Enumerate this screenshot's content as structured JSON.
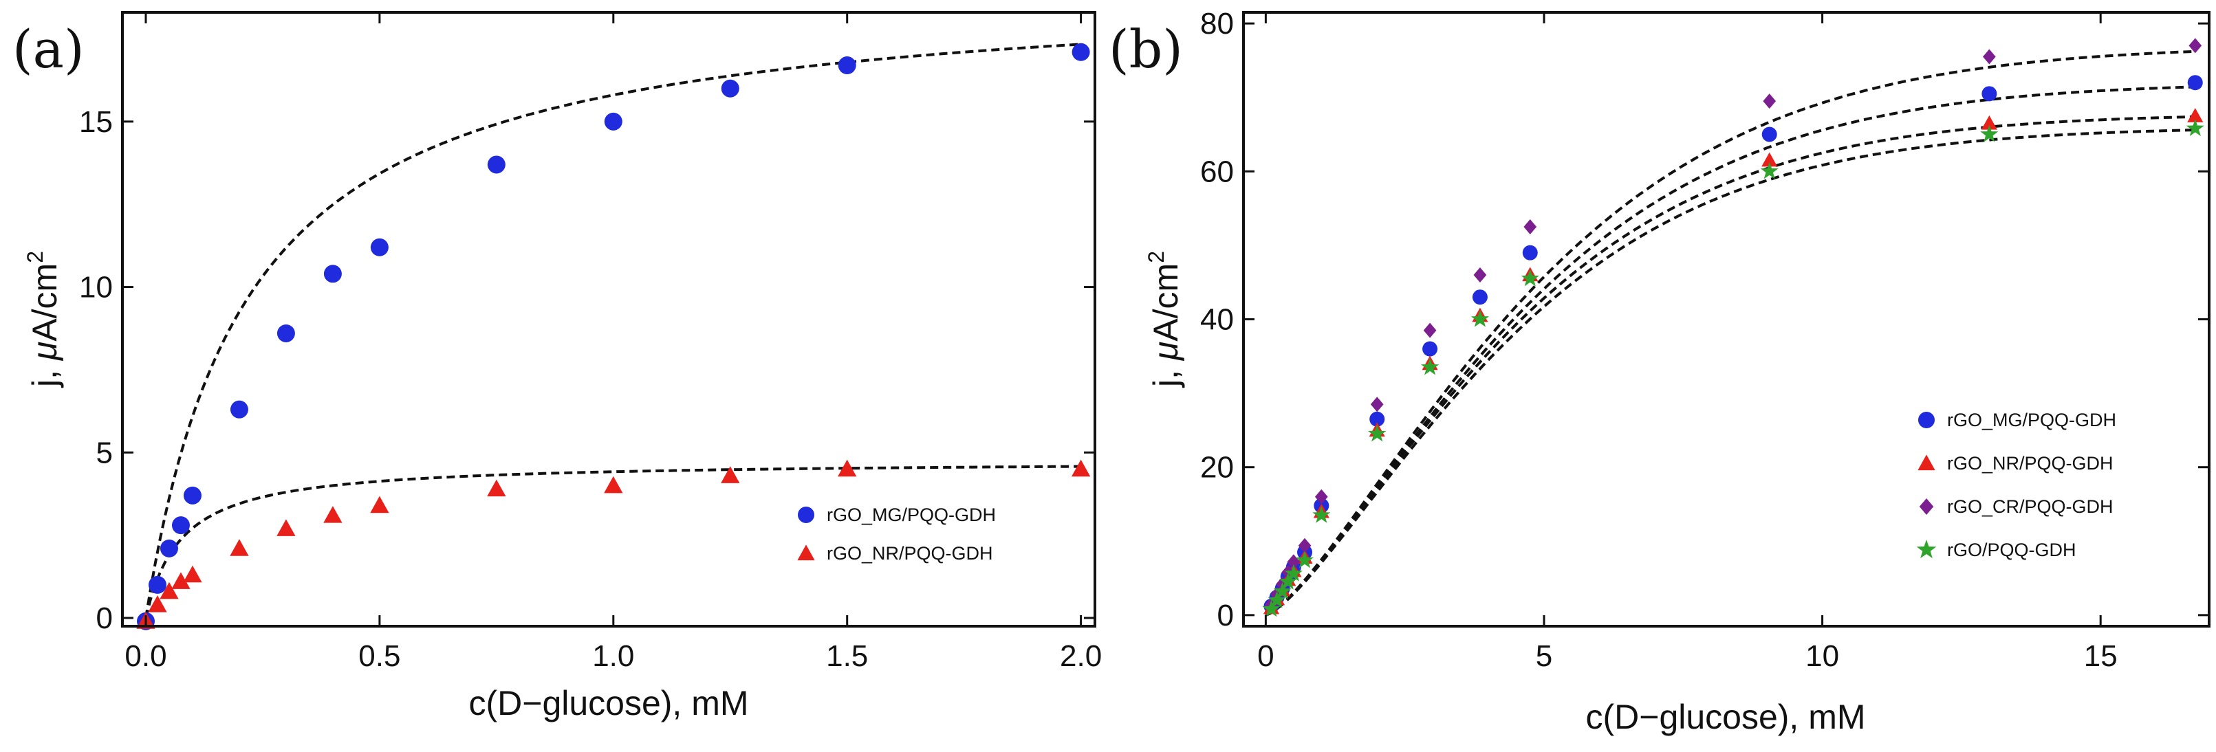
{
  "chart_data": [
    {
      "id": "a",
      "type": "scatter",
      "panel_label": "(a)",
      "title": "",
      "xlabel": "c(D−glucose), mM",
      "ylabel_main": "j, ",
      "ylabel_mu": "μ",
      "ylabel_unit": "A/cm",
      "ylabel_sup": "2",
      "xlim": [
        -0.05,
        2.03
      ],
      "ylim": [
        -0.25,
        18.3
      ],
      "xticks": [
        0.0,
        0.5,
        1.0,
        1.5,
        2.0
      ],
      "xtick_labels": [
        "0.0",
        "0.5",
        "1.0",
        "1.5",
        "2.0"
      ],
      "yticks": [
        0,
        5,
        10,
        15
      ],
      "ytick_labels": [
        "0",
        "5",
        "10",
        "15"
      ],
      "legend_position": "lower-right",
      "series": [
        {
          "name": "rGO_MG/PQQ-GDH",
          "marker": "circle",
          "color": "#1f2bdc",
          "x": [
            0.0,
            0.025,
            0.05,
            0.075,
            0.1,
            0.2,
            0.3,
            0.4,
            0.5,
            0.75,
            1.0,
            1.25,
            1.5,
            2.0
          ],
          "y": [
            -0.1,
            1.0,
            2.1,
            2.8,
            3.7,
            6.3,
            8.6,
            10.4,
            11.2,
            13.7,
            15.0,
            16.0,
            16.7,
            17.1
          ],
          "fit": {
            "jmax": 19.2,
            "k": 0.215
          }
        },
        {
          "name": "rGO_NR/PQQ-GDH",
          "marker": "triangle",
          "color": "#e8201a",
          "x": [
            0.0,
            0.025,
            0.05,
            0.075,
            0.1,
            0.2,
            0.3,
            0.4,
            0.5,
            0.75,
            1.0,
            1.25,
            1.5,
            2.0
          ],
          "y": [
            -0.1,
            0.4,
            0.8,
            1.1,
            1.3,
            2.1,
            2.7,
            3.1,
            3.4,
            3.9,
            4.0,
            4.3,
            4.5,
            4.5
          ],
          "fit": {
            "jmax": 4.75,
            "k": 0.075
          }
        }
      ]
    },
    {
      "id": "b",
      "type": "scatter",
      "panel_label": "(b)",
      "title": "",
      "xlabel": "c(D−glucose), mM",
      "ylabel_main": "j, ",
      "ylabel_mu": "μ",
      "ylabel_unit": "A/cm",
      "ylabel_sup": "2",
      "xlim": [
        -0.4,
        16.95
      ],
      "ylim": [
        -1.5,
        81.5
      ],
      "xticks": [
        0,
        5,
        10,
        15
      ],
      "xtick_labels": [
        "0",
        "5",
        "10",
        "15"
      ],
      "yticks": [
        0,
        20,
        40,
        60,
        80
      ],
      "ytick_labels": [
        "0",
        "20",
        "40",
        "60",
        "80"
      ],
      "legend_position": "lower-right",
      "series": [
        {
          "name": "rGO_MG/PQQ-GDH",
          "marker": "circle",
          "color": "#1f2bdc",
          "x": [
            0.1,
            0.2,
            0.3,
            0.4,
            0.5,
            0.7,
            1.0,
            2.0,
            2.95,
            3.85,
            4.75,
            9.05,
            13.0,
            16.7
          ],
          "y": [
            1.2,
            2.4,
            3.6,
            5.2,
            6.5,
            8.5,
            14.8,
            26.5,
            36.0,
            43.0,
            49.0,
            65.0,
            70.5,
            72.0
          ],
          "fit": {
            "jmax": 72.0,
            "s": 5.2,
            "p": 1.8
          }
        },
        {
          "name": "rGO_NR/PQQ-GDH",
          "marker": "triangle",
          "color": "#e8201a",
          "x": [
            0.1,
            0.2,
            0.3,
            0.4,
            0.5,
            0.7,
            1.0,
            2.0,
            2.95,
            3.85,
            4.75,
            9.05,
            13.0,
            16.7
          ],
          "y": [
            1.0,
            2.2,
            3.4,
            4.8,
            6.0,
            7.8,
            14.0,
            25.0,
            34.0,
            40.5,
            46.0,
            61.5,
            66.5,
            67.5
          ],
          "fit": {
            "jmax": 67.8,
            "s": 5.0,
            "p": 1.8
          }
        },
        {
          "name": "rGO_CR/PQQ-GDH",
          "marker": "diamond",
          "color": "#7b1e8f",
          "x": [
            0.1,
            0.2,
            0.3,
            0.4,
            0.5,
            0.7,
            1.0,
            2.0,
            2.95,
            3.85,
            4.75,
            9.05,
            13.0,
            16.7
          ],
          "y": [
            1.4,
            2.8,
            4.2,
            5.8,
            7.2,
            9.4,
            16.0,
            28.5,
            38.5,
            46.0,
            52.5,
            69.5,
            75.5,
            77.0
          ],
          "fit": {
            "jmax": 77.0,
            "s": 5.4,
            "p": 1.8
          }
        },
        {
          "name": "rGO/PQQ-GDH",
          "marker": "star",
          "color": "#2ea52a",
          "x": [
            0.1,
            0.2,
            0.3,
            0.4,
            0.5,
            0.7,
            1.0,
            2.0,
            2.95,
            3.85,
            4.75,
            9.05,
            13.0,
            16.7
          ],
          "y": [
            0.8,
            2.0,
            3.2,
            4.5,
            5.6,
            7.4,
            13.5,
            24.5,
            33.5,
            40.0,
            45.5,
            60.0,
            65.0,
            65.8
          ],
          "fit": {
            "jmax": 66.0,
            "s": 5.0,
            "p": 1.8
          }
        }
      ]
    }
  ]
}
